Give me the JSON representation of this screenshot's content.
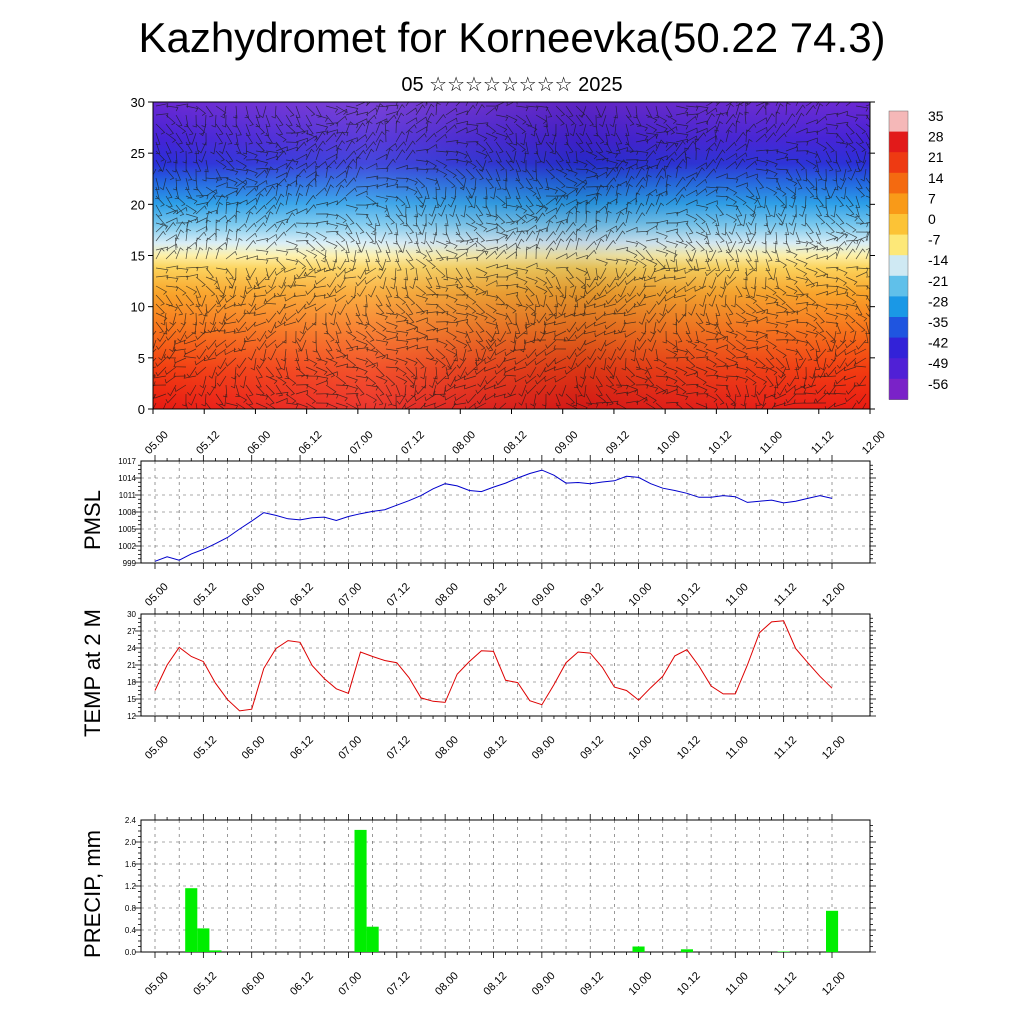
{
  "title": "Kazhydromet for Korneevka(50.22 74.3)",
  "subtitle": "05 ☆☆☆☆☆☆☆☆ 2025",
  "time_ticks": [
    "05.00",
    "05.12",
    "06.00",
    "06.12",
    "07.00",
    "07.12",
    "08.00",
    "08.12",
    "09.00",
    "09.12",
    "10.00",
    "10.12",
    "11.00",
    "11.12",
    "12.00"
  ],
  "colors": {
    "pmsl": "#0000cc",
    "temp": "#dd0000",
    "precip": "#00ee00",
    "axis": "#000000",
    "grid": "#555555"
  },
  "chart_data": [
    {
      "type": "heatmap",
      "title": "",
      "ylabel": "",
      "ylim": [
        0,
        30
      ],
      "yticks": [
        "0",
        "5",
        "10",
        "15",
        "20",
        "25",
        "30"
      ],
      "x": [
        "05.00",
        "05.12",
        "06.00",
        "06.12",
        "07.00",
        "07.12",
        "08.00",
        "08.12",
        "09.00",
        "09.12",
        "10.00",
        "10.12",
        "11.00",
        "11.12",
        "12.00"
      ],
      "colorbar_labels": [
        "35",
        "28",
        "21",
        "14",
        "7",
        "0",
        "-7",
        "-14",
        "-21",
        "-28",
        "-35",
        "-42",
        "-49",
        "-56"
      ],
      "colorbar_colors": [
        "#f5b8b8",
        "#e21a1a",
        "#ee3a12",
        "#f46a10",
        "#f99a18",
        "#fcc336",
        "#fde878",
        "#cfe9f3",
        "#60c0ea",
        "#1a98e6",
        "#1f55e0",
        "#3222d8",
        "#5020d6",
        "#7a22c8"
      ],
      "legend": "right",
      "overlay": "wind barbs"
    },
    {
      "type": "line",
      "ylabel": "PMSL",
      "ylim": [
        999,
        1017
      ],
      "yticks": [
        "999",
        "1002",
        "1005",
        "1008",
        "1011",
        "1014",
        "1017"
      ],
      "grid": true,
      "x": [
        "05.00",
        "05.03",
        "05.06",
        "05.09",
        "05.12",
        "05.15",
        "05.18",
        "05.21",
        "06.00",
        "06.03",
        "06.06",
        "06.09",
        "06.12",
        "06.15",
        "06.18",
        "06.21",
        "07.00",
        "07.03",
        "07.06",
        "07.09",
        "07.12",
        "07.15",
        "07.18",
        "07.21",
        "08.00",
        "08.03",
        "08.06",
        "08.09",
        "08.12",
        "08.15",
        "08.18",
        "08.21",
        "09.00",
        "09.03",
        "09.06",
        "09.09",
        "09.12",
        "09.15",
        "09.18",
        "09.21",
        "10.00",
        "10.03",
        "10.06",
        "10.09",
        "10.12",
        "10.15",
        "10.18",
        "10.21",
        "11.00",
        "11.03",
        "11.06",
        "11.09",
        "11.12",
        "11.15",
        "11.18",
        "11.21",
        "12.00"
      ],
      "series": [
        {
          "values": [
            999.3,
            1000.1,
            999.5,
            1000.6,
            1001.4,
            1002.4,
            1003.5,
            1005.0,
            1006.4,
            1007.9,
            1007.4,
            1006.8,
            1006.6,
            1007.0,
            1007.1,
            1006.5,
            1007.2,
            1007.7,
            1008.1,
            1008.4,
            1009.2,
            1010.0,
            1010.9,
            1012.1,
            1013.0,
            1012.6,
            1011.8,
            1011.6,
            1012.4,
            1013.1,
            1014.0,
            1014.8,
            1015.4,
            1014.5,
            1013.1,
            1013.2,
            1013.0,
            1013.3,
            1013.5,
            1014.3,
            1014.1,
            1013.0,
            1012.2,
            1011.8,
            1011.3,
            1010.6,
            1010.6,
            1010.9,
            1010.7,
            1009.7,
            1009.9,
            1010.1,
            1009.6,
            1009.9,
            1010.4,
            1010.9,
            1010.4
          ]
        }
      ]
    },
    {
      "type": "line",
      "ylabel": "TEMP at 2 M",
      "ylim": [
        12,
        30
      ],
      "yticks": [
        "12",
        "15",
        "18",
        "21",
        "24",
        "27",
        "30"
      ],
      "grid": true,
      "x": [
        "05.00",
        "05.03",
        "05.06",
        "05.09",
        "05.12",
        "05.15",
        "05.18",
        "05.21",
        "06.00",
        "06.03",
        "06.06",
        "06.09",
        "06.12",
        "06.15",
        "06.18",
        "06.21",
        "07.00",
        "07.03",
        "07.06",
        "07.09",
        "07.12",
        "07.15",
        "07.18",
        "07.21",
        "08.00",
        "08.03",
        "08.06",
        "08.09",
        "08.12",
        "08.15",
        "08.18",
        "08.21",
        "09.00",
        "09.03",
        "09.06",
        "09.09",
        "09.12",
        "09.15",
        "09.18",
        "09.21",
        "10.00",
        "10.03",
        "10.06",
        "10.09",
        "10.12",
        "10.15",
        "10.18",
        "10.21",
        "11.00",
        "11.03",
        "11.06",
        "11.09",
        "11.12",
        "11.15",
        "11.18",
        "11.21",
        "12.00"
      ],
      "series": [
        {
          "values": [
            16.5,
            21.0,
            24.1,
            22.5,
            21.6,
            17.8,
            14.9,
            12.9,
            13.2,
            20.4,
            23.9,
            25.3,
            25.0,
            20.9,
            18.6,
            16.8,
            16.0,
            23.3,
            22.5,
            21.8,
            21.4,
            18.8,
            15.2,
            14.6,
            14.4,
            19.4,
            21.6,
            23.5,
            23.4,
            18.3,
            17.9,
            14.7,
            14.0,
            17.5,
            21.4,
            23.3,
            23.1,
            20.6,
            17.1,
            16.5,
            14.8,
            17.0,
            19.0,
            22.6,
            23.7,
            20.8,
            17.3,
            15.9,
            15.9,
            21.0,
            26.7,
            28.6,
            28.8,
            23.9,
            21.4,
            19.0,
            16.9
          ]
        }
      ]
    },
    {
      "type": "bar",
      "ylabel": "PRECIP, mm",
      "ylim": [
        0,
        2.4
      ],
      "yticks": [
        "0.0",
        "0.4",
        "0.8",
        "1.2",
        "1.6",
        "2.0",
        "2.4"
      ],
      "grid": true,
      "x": [
        "05.09",
        "05.12",
        "05.15",
        "07.03",
        "07.06",
        "10.00",
        "10.12",
        "11.12",
        "12.00"
      ],
      "values": [
        1.16,
        0.43,
        0.03,
        2.22,
        0.46,
        0.1,
        0.05,
        0.01,
        0.75
      ]
    }
  ]
}
